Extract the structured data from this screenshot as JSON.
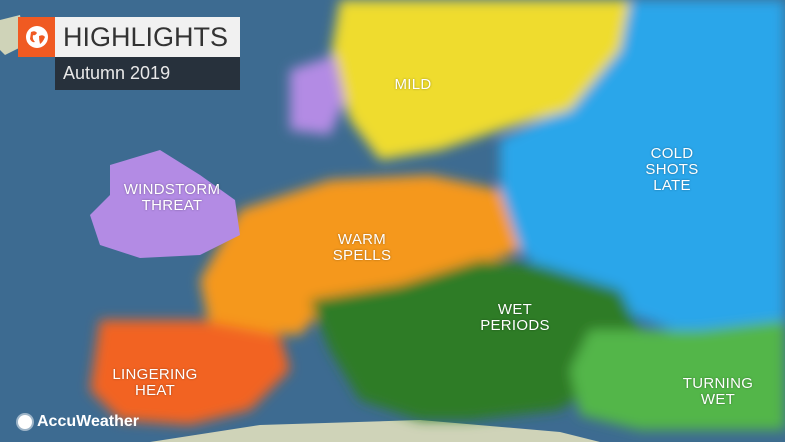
{
  "header": {
    "icon": "globe-icon",
    "title": "HIGHLIGHTS",
    "subtitle": "Autumn 2019"
  },
  "regions": [
    {
      "id": "mild",
      "lines": [
        "MILD"
      ],
      "color": "#efdc2f"
    },
    {
      "id": "cold",
      "lines": [
        "COLD",
        "SHOTS",
        "LATE"
      ],
      "color": "#2ba6ea"
    },
    {
      "id": "windstorm",
      "lines": [
        "WINDSTORM",
        "THREAT"
      ],
      "color": "#b38be4"
    },
    {
      "id": "warm",
      "lines": [
        "WARM",
        "SPELLS"
      ],
      "color": "#f5981f"
    },
    {
      "id": "wet",
      "lines": [
        "WET",
        "PERIODS"
      ],
      "color": "#2e7b28"
    },
    {
      "id": "heat",
      "lines": [
        "LINGERING",
        "HEAT"
      ],
      "color": "#f26423"
    },
    {
      "id": "turning",
      "lines": [
        "TURNING",
        "WET"
      ],
      "color": "#52b649"
    }
  ],
  "colors": {
    "sea": "#3d6b91",
    "land": "#cfd3b8",
    "header_accent": "#f05a22",
    "header_dark": "#27313c"
  },
  "logo": {
    "icon": "sun-icon",
    "text": "AccuWeather"
  }
}
